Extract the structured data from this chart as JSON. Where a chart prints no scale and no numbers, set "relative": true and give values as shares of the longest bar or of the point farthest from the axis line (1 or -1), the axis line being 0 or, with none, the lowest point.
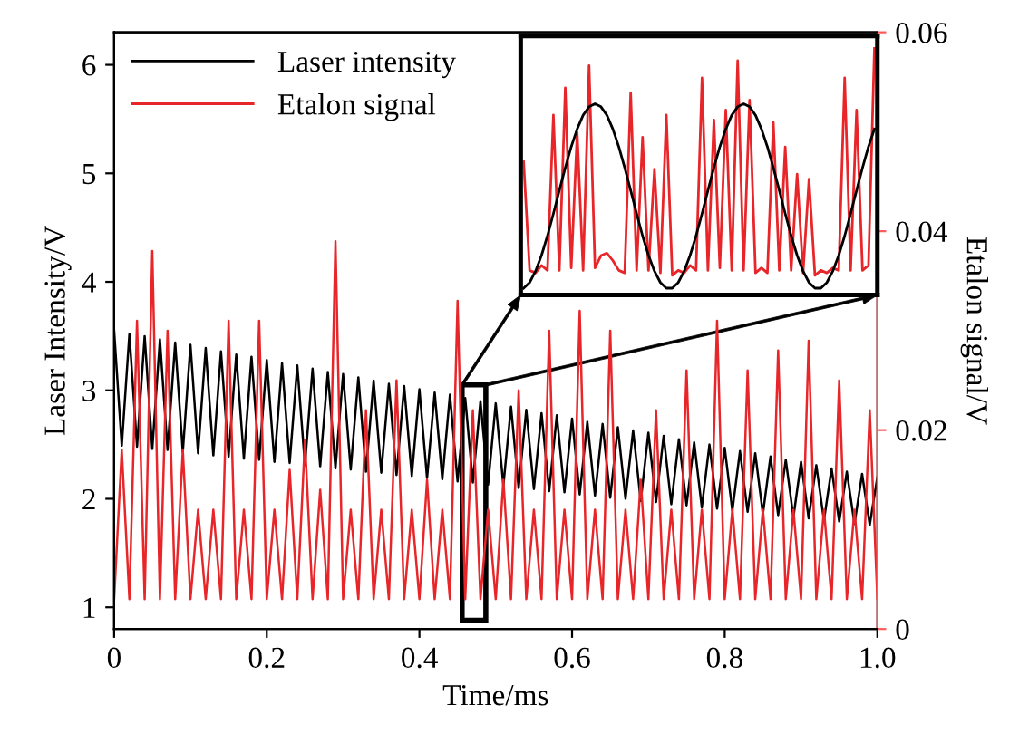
{
  "chart_data": [
    {
      "type": "line",
      "xlabel": "Time/ms",
      "ylabel": "Laser Intensity/V",
      "y2label": "Etalon signal/V",
      "x": [
        0,
        0.01,
        0.02,
        0.03,
        0.04,
        0.05,
        0.06,
        0.07,
        0.08,
        0.09,
        0.1,
        0.11,
        0.12,
        0.13,
        0.14,
        0.15,
        0.16,
        0.17,
        0.18,
        0.19,
        0.2,
        0.21,
        0.22,
        0.23,
        0.24,
        0.25,
        0.26,
        0.27,
        0.28,
        0.29,
        0.3,
        0.31,
        0.32,
        0.33,
        0.34,
        0.35,
        0.36,
        0.37,
        0.38,
        0.39,
        0.4,
        0.41,
        0.42,
        0.43,
        0.44,
        0.45,
        0.46,
        0.47,
        0.48,
        0.49,
        0.5,
        0.51,
        0.52,
        0.53,
        0.54,
        0.55,
        0.56,
        0.57,
        0.58,
        0.59,
        0.6,
        0.61,
        0.62,
        0.63,
        0.64,
        0.65,
        0.66,
        0.67,
        0.68,
        0.69,
        0.7,
        0.71,
        0.72,
        0.73,
        0.74,
        0.75,
        0.76,
        0.77,
        0.78,
        0.79,
        0.8,
        0.81,
        0.82,
        0.83,
        0.84,
        0.85,
        0.86,
        0.87,
        0.88,
        0.89,
        0.9,
        0.91,
        0.92,
        0.93,
        0.94,
        0.95,
        0.96,
        0.97,
        0.98,
        0.99,
        1.0
      ],
      "series": [
        {
          "name": "Laser intensity",
          "color": "#000000",
          "values": [
            3.55,
            2.49,
            3.52,
            2.48,
            3.5,
            2.46,
            3.47,
            2.45,
            3.44,
            2.43,
            3.42,
            2.42,
            3.39,
            2.4,
            3.36,
            2.39,
            3.33,
            2.37,
            3.31,
            2.36,
            3.28,
            2.34,
            3.25,
            2.33,
            3.23,
            2.31,
            3.2,
            2.3,
            3.17,
            2.28,
            3.15,
            2.27,
            3.12,
            2.25,
            3.09,
            2.24,
            3.06,
            2.22,
            3.04,
            2.21,
            3.01,
            2.19,
            2.98,
            2.18,
            2.96,
            2.16,
            2.93,
            2.15,
            2.9,
            2.13,
            2.88,
            2.12,
            2.85,
            2.1,
            2.82,
            2.09,
            2.79,
            2.07,
            2.77,
            2.06,
            2.74,
            2.04,
            2.71,
            2.03,
            2.69,
            2.01,
            2.66,
            2.0,
            2.63,
            1.98,
            2.61,
            1.97,
            2.58,
            1.95,
            2.55,
            1.94,
            2.52,
            1.92,
            2.5,
            1.91,
            2.47,
            1.89,
            2.44,
            1.88,
            2.42,
            1.86,
            2.39,
            1.85,
            2.36,
            1.83,
            2.34,
            1.82,
            2.31,
            1.8,
            2.28,
            1.79,
            2.25,
            1.77,
            2.23,
            1.76,
            2.2
          ]
        },
        {
          "name": "Etalon signal",
          "color": "#e8262a",
          "axis": "y2",
          "values": [
            0.003,
            0.018,
            0.003,
            0.031,
            0.003,
            0.038,
            0.003,
            0.03,
            0.003,
            0.018,
            0.003,
            0.012,
            0.003,
            0.012,
            0.003,
            0.031,
            0.003,
            0.012,
            0.003,
            0.031,
            0.003,
            0.012,
            0.003,
            0.016,
            0.003,
            0.019,
            0.003,
            0.014,
            0.003,
            0.039,
            0.003,
            0.012,
            0.003,
            0.022,
            0.003,
            0.012,
            0.003,
            0.025,
            0.003,
            0.012,
            0.003,
            0.015,
            0.003,
            0.012,
            0.003,
            0.033,
            0.003,
            0.022,
            0.003,
            0.012,
            0.003,
            0.015,
            0.003,
            0.024,
            0.003,
            0.012,
            0.003,
            0.03,
            0.003,
            0.012,
            0.003,
            0.032,
            0.003,
            0.012,
            0.003,
            0.03,
            0.003,
            0.012,
            0.003,
            0.015,
            0.003,
            0.022,
            0.003,
            0.012,
            0.003,
            0.026,
            0.003,
            0.012,
            0.003,
            0.031,
            0.003,
            0.012,
            0.003,
            0.026,
            0.003,
            0.012,
            0.003,
            0.028,
            0.003,
            0.012,
            0.003,
            0.029,
            0.003,
            0.012,
            0.003,
            0.025,
            0.003,
            0.012,
            0.003,
            0.022,
            0.003
          ]
        }
      ],
      "xlim": [
        0,
        1.0
      ],
      "xticks": [
        0,
        0.2,
        0.4,
        0.6,
        0.8,
        {
          "value": 1.0,
          "label": "1.0"
        }
      ],
      "ylim": [
        0.8,
        6.3
      ],
      "yticks": [
        1,
        2,
        3,
        4,
        5,
        6
      ],
      "y2lim": [
        0,
        0.06
      ],
      "y2ticks": [
        0,
        0.02,
        0.04,
        0.06
      ],
      "legend": "top left",
      "grid": false,
      "marker": "none",
      "line_style": "solid"
    },
    {
      "type": "line",
      "relative": true,
      "tick_labels": false,
      "grid": false,
      "marker": "none",
      "line_style": "solid",
      "categories": [
        null,
        null,
        null,
        null,
        null,
        null,
        null,
        null,
        null,
        null,
        null,
        null,
        null,
        null,
        null,
        null,
        null,
        null,
        null,
        null,
        null,
        null,
        null,
        null,
        null,
        null,
        null,
        null,
        null,
        null,
        null,
        null,
        null,
        null,
        null,
        null,
        null,
        null,
        null,
        null,
        null,
        null,
        null,
        null,
        null,
        null,
        null,
        null,
        null,
        null,
        null,
        null,
        null,
        null,
        null,
        null,
        null,
        null,
        null,
        null
      ],
      "series": [
        {
          "color": "#e8262a",
          "values": [
            0.54,
            0.1,
            0.09,
            0.12,
            0.1,
            0.73,
            0.1,
            0.84,
            0.11,
            0.66,
            0.1,
            0.93,
            0.11,
            0.16,
            0.17,
            0.14,
            0.1,
            0.09,
            0.82,
            0.1,
            0.64,
            0.1,
            0.51,
            0.09,
            0.73,
            0.08,
            0.1,
            0.09,
            0.12,
            0.1,
            0.88,
            0.1,
            0.71,
            0.11,
            0.75,
            0.1,
            0.95,
            0.1,
            0.79,
            0.09,
            0.11,
            0.09,
            0.7,
            0.1,
            0.6,
            0.1,
            0.49,
            0.09,
            0.47,
            0.08,
            0.1,
            0.09,
            0.11,
            0.1,
            0.88,
            0.1,
            0.75,
            0.1,
            0.12,
            1.0
          ]
        },
        {
          "color": "#000000",
          "values": [
            0.028,
            0.051,
            0.097,
            0.161,
            0.24,
            0.33,
            0.424,
            0.516,
            0.601,
            0.673,
            0.729,
            0.763,
            0.775,
            0.763,
            0.729,
            0.673,
            0.601,
            0.516,
            0.424,
            0.33,
            0.24,
            0.161,
            0.097,
            0.051,
            0.028,
            0.028,
            0.051,
            0.097,
            0.161,
            0.24,
            0.33,
            0.424,
            0.516,
            0.601,
            0.673,
            0.729,
            0.763,
            0.775,
            0.763,
            0.729,
            0.673,
            0.601,
            0.516,
            0.424,
            0.33,
            0.24,
            0.161,
            0.097,
            0.051,
            0.028,
            0.028,
            0.051,
            0.097,
            0.161,
            0.24,
            0.33,
            0.424,
            0.516,
            0.601,
            0.673
          ]
        }
      ]
    }
  ]
}
